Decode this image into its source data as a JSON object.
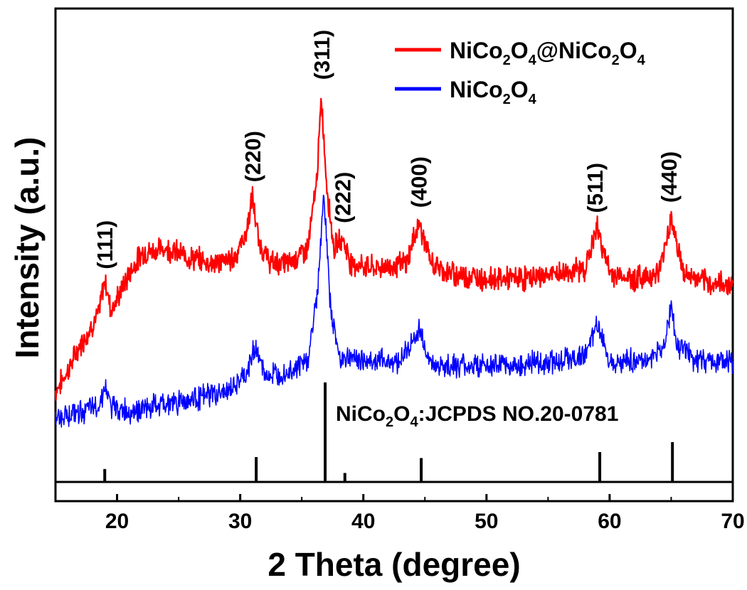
{
  "chart_data": {
    "type": "line",
    "title": "",
    "xlabel": "2 Theta (degree)",
    "ylabel": "Intensity (a.u.)",
    "xlim": [
      15,
      70
    ],
    "xticks": [
      20,
      30,
      40,
      50,
      60,
      70
    ],
    "y_ticks_shown": false,
    "series": [
      {
        "name": "NiCo2O4@NiCo2O4",
        "legend": {
          "base": "NiCo",
          "sub1": "2",
          "mid": "O",
          "sub2": "4",
          "at": "@NiCo",
          "sub3": "2",
          "mid2": "O",
          "sub4": "4"
        },
        "color": "#ff0000",
        "x": [
          15,
          16,
          17,
          18,
          18.5,
          19,
          19.5,
          20,
          21,
          22,
          24,
          26,
          28,
          29.5,
          30.5,
          31,
          31.5,
          32.5,
          34,
          35.5,
          36.2,
          36.6,
          37,
          37.6,
          38.3,
          39,
          41,
          43.5,
          44.5,
          45.5,
          47,
          50,
          53,
          56,
          58,
          59,
          60,
          62,
          64,
          65,
          66,
          68,
          70
        ],
        "values": [
          0.43,
          0.47,
          0.52,
          0.56,
          0.58,
          0.65,
          0.59,
          0.61,
          0.66,
          0.7,
          0.71,
          0.69,
          0.68,
          0.69,
          0.74,
          0.81,
          0.72,
          0.68,
          0.68,
          0.71,
          0.84,
          1.0,
          0.84,
          0.71,
          0.73,
          0.68,
          0.67,
          0.68,
          0.76,
          0.68,
          0.66,
          0.65,
          0.65,
          0.66,
          0.67,
          0.75,
          0.66,
          0.65,
          0.66,
          0.77,
          0.66,
          0.64,
          0.64
        ]
      },
      {
        "name": "NiCo2O4",
        "legend": {
          "base": "NiCo",
          "sub1": "2",
          "mid": "O",
          "sub2": "4"
        },
        "color": "#0000ff",
        "x": [
          15,
          17,
          18.5,
          19,
          19.5,
          21,
          23,
          25,
          27,
          29,
          30.5,
          31.2,
          32,
          34,
          35.5,
          36.3,
          36.8,
          37.3,
          38,
          40,
          43,
          44.6,
          45.5,
          48,
          52,
          56,
          58,
          59,
          60,
          63,
          64.5,
          65,
          65.5,
          67,
          70
        ],
        "values": [
          0.38,
          0.39,
          0.4,
          0.44,
          0.4,
          0.39,
          0.4,
          0.41,
          0.42,
          0.43,
          0.46,
          0.52,
          0.46,
          0.47,
          0.49,
          0.63,
          0.82,
          0.6,
          0.5,
          0.49,
          0.49,
          0.55,
          0.48,
          0.48,
          0.48,
          0.49,
          0.5,
          0.56,
          0.49,
          0.49,
          0.52,
          0.6,
          0.52,
          0.49,
          0.49
        ]
      }
    ],
    "reference": {
      "label": {
        "base": "NiCo",
        "sub1": "2",
        "mid": "O",
        "sub2": ":JCPDS NO.20-0781",
        "sub2_digit": "4"
      },
      "peaks": [
        {
          "x": 19.0,
          "intensity": 0.13
        },
        {
          "x": 31.3,
          "intensity": 0.25
        },
        {
          "x": 36.9,
          "intensity": 1.0
        },
        {
          "x": 38.5,
          "intensity": 0.09
        },
        {
          "x": 44.7,
          "intensity": 0.24
        },
        {
          "x": 59.2,
          "intensity": 0.3
        },
        {
          "x": 65.1,
          "intensity": 0.4
        }
      ]
    },
    "peak_labels": [
      {
        "text": "(111)",
        "x": 19.0,
        "intensity": 0.66
      },
      {
        "text": "(220)",
        "x": 31.0,
        "intensity": 0.83
      },
      {
        "text": "(311)",
        "x": 36.6,
        "intensity": 1.03
      },
      {
        "text": "(222)",
        "x": 38.3,
        "intensity": 0.75
      },
      {
        "text": "(400)",
        "x": 44.5,
        "intensity": 0.78
      },
      {
        "text": "(511)",
        "x": 58.8,
        "intensity": 0.77
      },
      {
        "text": "(440)",
        "x": 64.8,
        "intensity": 0.79
      }
    ]
  }
}
